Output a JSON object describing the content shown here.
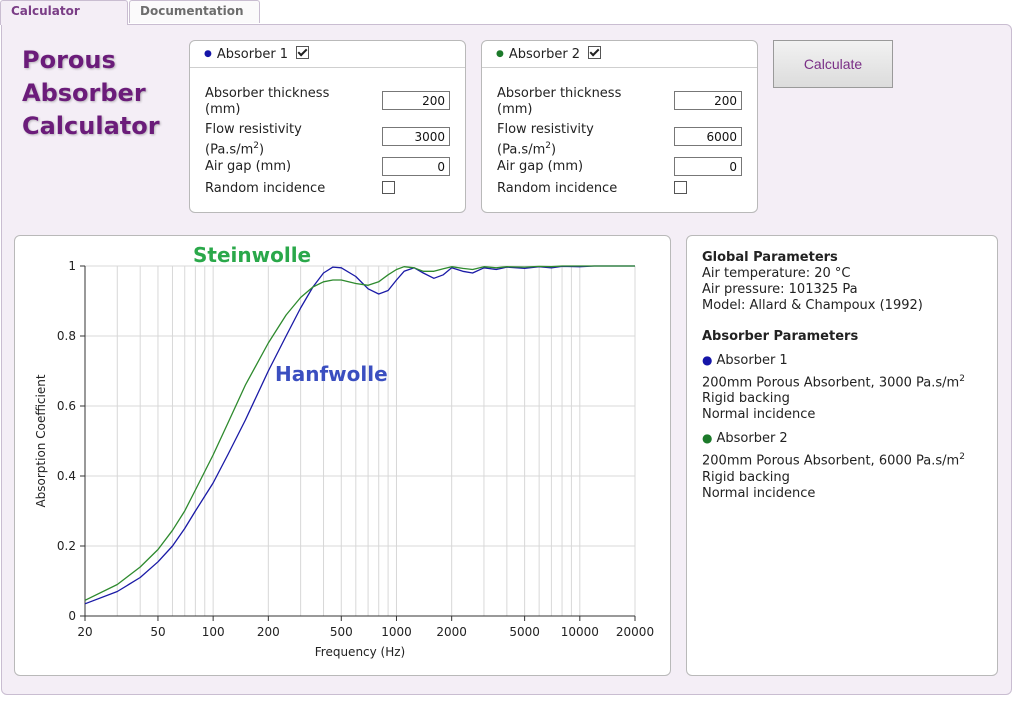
{
  "tabs": [
    {
      "label": "Calculator",
      "active": true
    },
    {
      "label": "Documentation",
      "active": false
    }
  ],
  "app_title": [
    "Porous",
    "Absorber",
    "Calculator"
  ],
  "absorbers": [
    {
      "title": "Absorber 1",
      "enabled": true,
      "color": "#1515a8",
      "thickness_label": [
        "Absorber thickness",
        "(mm)"
      ],
      "thickness": "200",
      "flow_label": [
        "Flow resistivity",
        "(Pa.s/m",
        "2",
        ")"
      ],
      "flow": "3000",
      "airgap_label": "Air gap (mm)",
      "airgap": "0",
      "random_label": "Random incidence",
      "random": false
    },
    {
      "title": "Absorber 2",
      "enabled": true,
      "color": "#1c7a2a",
      "thickness_label": [
        "Absorber thickness",
        "(mm)"
      ],
      "thickness": "200",
      "flow_label": [
        "Flow resistivity",
        "(Pa.s/m",
        "2",
        ")"
      ],
      "flow": "6000",
      "airgap_label": "Air gap (mm)",
      "airgap": "0",
      "random_label": "Random incidence",
      "random": false
    }
  ],
  "calculate_label": "Calculate",
  "chart_data": {
    "type": "line",
    "xlabel": "Frequency (Hz)",
    "ylabel": "Absorption Coefficient",
    "xscale": "log",
    "xlim": [
      20,
      20000
    ],
    "ylim": [
      0,
      1
    ],
    "xticks": [
      20,
      50,
      100,
      200,
      500,
      1000,
      2000,
      5000,
      10000,
      20000
    ],
    "yticks": [
      0,
      0.2,
      0.4,
      0.6,
      0.8,
      1
    ],
    "ytick_labels": [
      "0",
      "0.2",
      "0.4",
      "0.6",
      "0.8",
      "1"
    ],
    "grid": true,
    "annotations": [
      {
        "text": "Steinwolle",
        "color": "#2aa84a"
      },
      {
        "text": "Hanfwolle",
        "color": "#3b4fc0"
      }
    ],
    "series": [
      {
        "color": "#1a1aa6",
        "x": [
          20,
          30,
          40,
          50,
          60,
          70,
          80,
          100,
          120,
          150,
          200,
          250,
          300,
          350,
          400,
          450,
          500,
          600,
          700,
          800,
          900,
          1000,
          1100,
          1250,
          1400,
          1600,
          1800,
          2000,
          2300,
          2600,
          3000,
          3500,
          4000,
          5000,
          6000,
          7000,
          8000,
          10000,
          12000,
          15000,
          20000
        ],
        "y": [
          0.035,
          0.07,
          0.11,
          0.155,
          0.2,
          0.25,
          0.3,
          0.38,
          0.46,
          0.56,
          0.7,
          0.8,
          0.88,
          0.94,
          0.98,
          0.997,
          0.995,
          0.97,
          0.935,
          0.92,
          0.93,
          0.96,
          0.985,
          0.995,
          0.98,
          0.965,
          0.975,
          0.995,
          0.985,
          0.98,
          0.995,
          0.99,
          0.997,
          0.993,
          0.998,
          0.995,
          0.999,
          0.998,
          1.0,
          1.0,
          1.0
        ]
      },
      {
        "color": "#2e8a2e",
        "x": [
          20,
          30,
          40,
          50,
          60,
          70,
          80,
          100,
          120,
          150,
          200,
          250,
          300,
          350,
          400,
          450,
          500,
          600,
          700,
          800,
          900,
          1000,
          1100,
          1250,
          1400,
          1600,
          1800,
          2000,
          2300,
          2600,
          3000,
          3500,
          4000,
          5000,
          6000,
          7000,
          8000,
          10000,
          12000,
          15000,
          20000
        ],
        "y": [
          0.045,
          0.09,
          0.14,
          0.19,
          0.245,
          0.3,
          0.36,
          0.46,
          0.55,
          0.66,
          0.78,
          0.86,
          0.91,
          0.94,
          0.955,
          0.96,
          0.96,
          0.95,
          0.945,
          0.955,
          0.975,
          0.99,
          0.998,
          0.995,
          0.985,
          0.985,
          0.992,
          0.998,
          0.993,
          0.99,
          0.998,
          0.995,
          0.998,
          0.997,
          0.999,
          0.998,
          1.0,
          1.0,
          1.0,
          1.0,
          1.0
        ]
      }
    ]
  },
  "info": {
    "global_heading": "Global Parameters",
    "air_temperature": "Air temperature: 20 °C",
    "air_pressure": "Air pressure: 101325 Pa",
    "model": "Model: Allard & Champoux (1992)",
    "absorber_heading": "Absorber Parameters",
    "items": [
      {
        "title": "Absorber 1",
        "desc": "200mm Porous Absorbent, 3000 Pa.s/m",
        "sup": "2",
        "backing": "Rigid backing",
        "incidence": "Normal incidence"
      },
      {
        "title": "Absorber 2",
        "desc": "200mm Porous Absorbent, 6000 Pa.s/m",
        "sup": "2",
        "backing": "Rigid backing",
        "incidence": "Normal incidence"
      }
    ]
  }
}
